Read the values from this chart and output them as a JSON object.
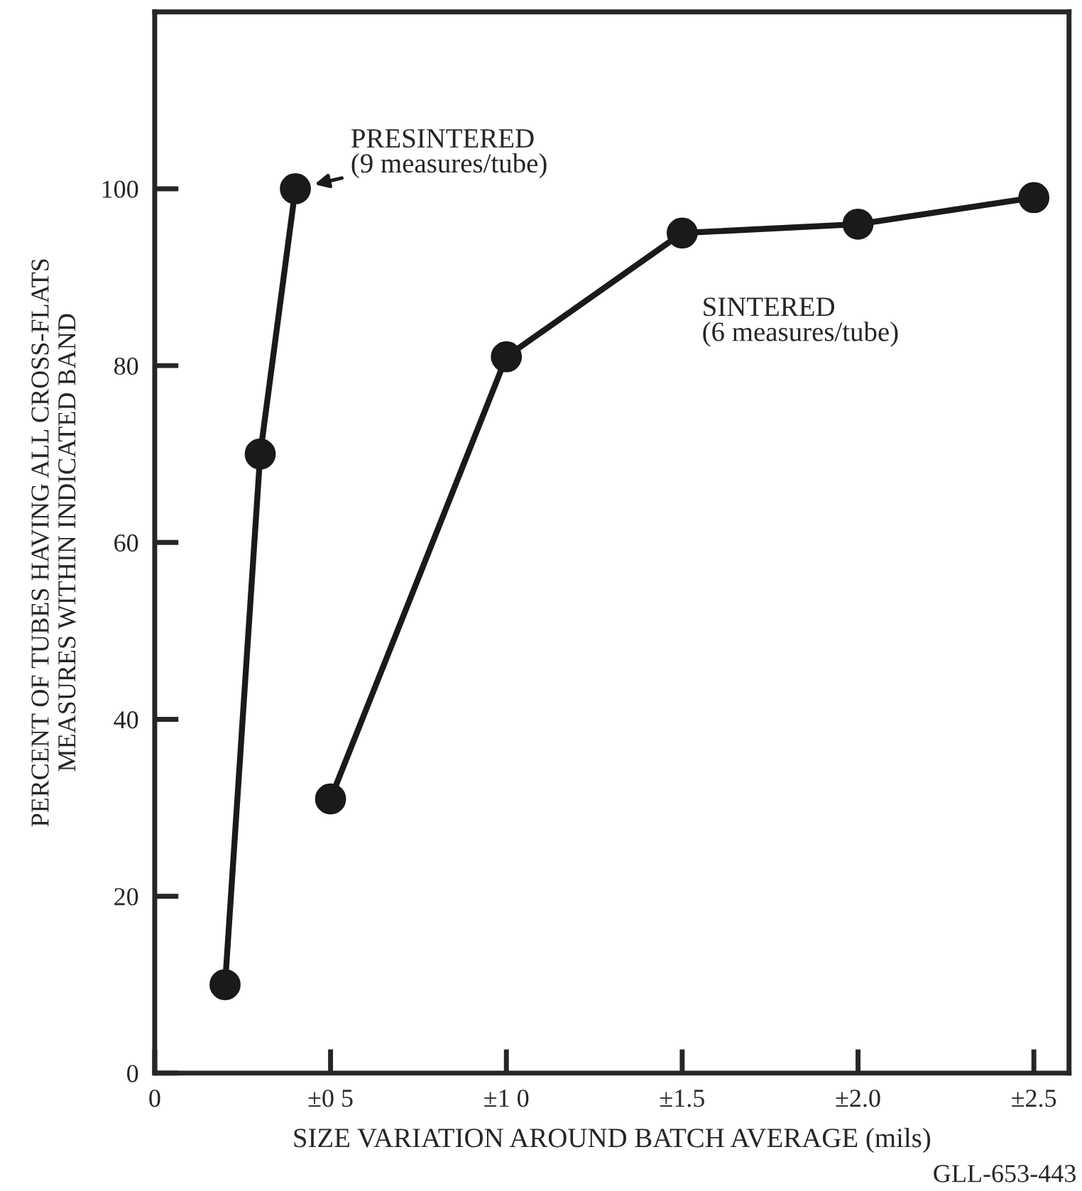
{
  "chart_data": {
    "type": "line",
    "xlabel": "SIZE VARIATION AROUND BATCH AVERAGE (mils)",
    "ylabel": "PERCENT OF TUBES HAVING ALL CROSS-FLATS\nMEASURES WITHIN INDICATED BAND",
    "series": [
      {
        "color": "#1a1a1a",
        "x": [
          0.2,
          0.3,
          0.4
        ],
        "values": [
          10,
          70,
          100
        ]
      },
      {
        "color": "#1a1a1a",
        "x": [
          0.5,
          1.0,
          1.5,
          2.0,
          2.5
        ],
        "values": [
          31,
          81,
          95,
          96,
          99
        ]
      }
    ],
    "marker": "circle",
    "line_style": "solid",
    "grid": false,
    "xlim": [
      0,
      2.6
    ],
    "ylim": [
      0,
      120
    ],
    "xticks": [
      0,
      {
        "value": 0.5,
        "label": "±0 5"
      },
      {
        "value": 1.0,
        "label": "±1 0"
      },
      {
        "value": 1.5,
        "label": "±1.5"
      },
      {
        "value": 2.0,
        "label": "±2.0"
      },
      {
        "value": 2.5,
        "label": "±2.5"
      }
    ],
    "yticks": [
      0,
      20,
      40,
      60,
      80,
      100
    ],
    "annotations": [
      {
        "text": "PRESINTERED\n(9 measures/tube)",
        "x": 0.4,
        "y": 100
      },
      {
        "text": "SINTERED\n(6 measures/tube)",
        "x": 1.5,
        "y": 95
      },
      "GLL-653-443"
    ]
  }
}
